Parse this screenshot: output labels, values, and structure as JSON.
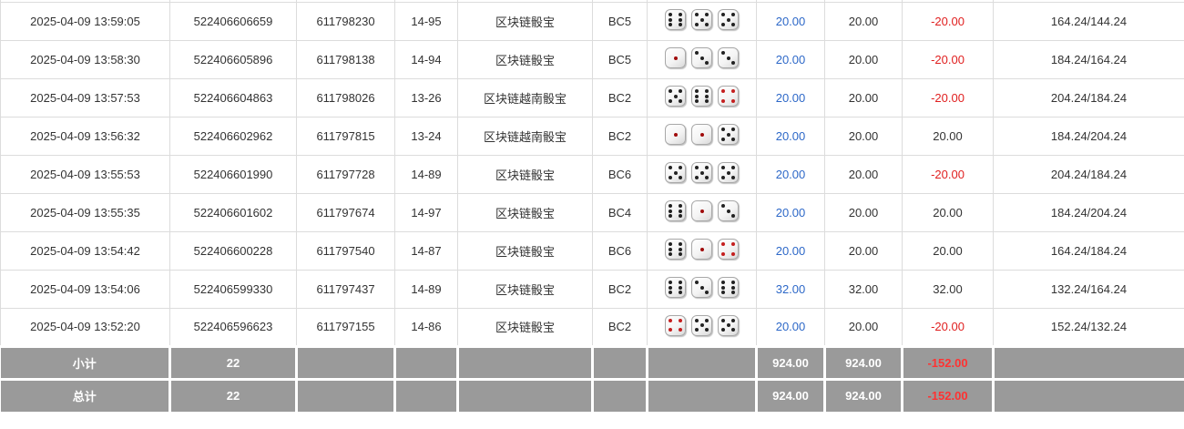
{
  "colors": {
    "link_blue": "#2d68c8",
    "negative_red": "#e01f1f",
    "footer_bg": "#9a9a9a",
    "footer_negative_red": "#ff3232",
    "pip_black": "#222222",
    "pip_red_one": "#a00c0c",
    "pip_red_four": "#c41f1f"
  },
  "rows": [
    {
      "time": "2025-04-09 13:59:05",
      "order_id": "522406606659",
      "round_id": "611798230",
      "period": "14-95",
      "game": "区块链骰宝",
      "table_code": "BC5",
      "dice": [
        6,
        5,
        5
      ],
      "bet": "20.00",
      "valid": "20.00",
      "win_loss": "-20.00",
      "balance": "164.24/144.24"
    },
    {
      "time": "2025-04-09 13:58:30",
      "order_id": "522406605896",
      "round_id": "611798138",
      "period": "14-94",
      "game": "区块链骰宝",
      "table_code": "BC5",
      "dice": [
        1,
        3,
        3
      ],
      "bet": "20.00",
      "valid": "20.00",
      "win_loss": "-20.00",
      "balance": "184.24/164.24"
    },
    {
      "time": "2025-04-09 13:57:53",
      "order_id": "522406604863",
      "round_id": "611798026",
      "period": "13-26",
      "game": "区块链越南骰宝",
      "table_code": "BC2",
      "dice": [
        5,
        6,
        4
      ],
      "bet": "20.00",
      "valid": "20.00",
      "win_loss": "-20.00",
      "balance": "204.24/184.24"
    },
    {
      "time": "2025-04-09 13:56:32",
      "order_id": "522406602962",
      "round_id": "611797815",
      "period": "13-24",
      "game": "区块链越南骰宝",
      "table_code": "BC2",
      "dice": [
        1,
        1,
        5
      ],
      "bet": "20.00",
      "valid": "20.00",
      "win_loss": "20.00",
      "balance": "184.24/204.24"
    },
    {
      "time": "2025-04-09 13:55:53",
      "order_id": "522406601990",
      "round_id": "611797728",
      "period": "14-89",
      "game": "区块链骰宝",
      "table_code": "BC6",
      "dice": [
        5,
        5,
        5
      ],
      "bet": "20.00",
      "valid": "20.00",
      "win_loss": "-20.00",
      "balance": "204.24/184.24"
    },
    {
      "time": "2025-04-09 13:55:35",
      "order_id": "522406601602",
      "round_id": "611797674",
      "period": "14-97",
      "game": "区块链骰宝",
      "table_code": "BC4",
      "dice": [
        6,
        1,
        3
      ],
      "bet": "20.00",
      "valid": "20.00",
      "win_loss": "20.00",
      "balance": "184.24/204.24"
    },
    {
      "time": "2025-04-09 13:54:42",
      "order_id": "522406600228",
      "round_id": "611797540",
      "period": "14-87",
      "game": "区块链骰宝",
      "table_code": "BC6",
      "dice": [
        6,
        1,
        4
      ],
      "bet": "20.00",
      "valid": "20.00",
      "win_loss": "20.00",
      "balance": "164.24/184.24"
    },
    {
      "time": "2025-04-09 13:54:06",
      "order_id": "522406599330",
      "round_id": "611797437",
      "period": "14-89",
      "game": "区块链骰宝",
      "table_code": "BC2",
      "dice": [
        6,
        3,
        6
      ],
      "bet": "32.00",
      "valid": "32.00",
      "win_loss": "32.00",
      "balance": "132.24/164.24"
    },
    {
      "time": "2025-04-09 13:52:20",
      "order_id": "522406596623",
      "round_id": "611797155",
      "period": "14-86",
      "game": "区块链骰宝",
      "table_code": "BC2",
      "dice": [
        4,
        5,
        5
      ],
      "bet": "20.00",
      "valid": "20.00",
      "win_loss": "-20.00",
      "balance": "152.24/132.24"
    }
  ],
  "footer": {
    "subtotal": {
      "label": "小计",
      "count": "22",
      "bet": "924.00",
      "valid": "924.00",
      "win_loss": "-152.00"
    },
    "total": {
      "label": "总计",
      "count": "22",
      "bet": "924.00",
      "valid": "924.00",
      "win_loss": "-152.00"
    }
  }
}
